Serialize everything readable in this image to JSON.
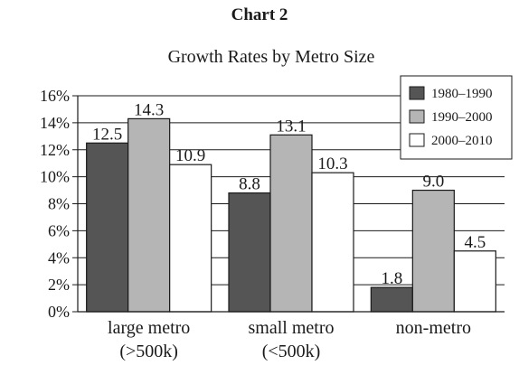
{
  "chart_data": {
    "type": "bar",
    "header": "Chart 2",
    "title": "Growth Rates by Metro Size",
    "xlabel": "",
    "ylabel": "",
    "ylim": [
      0,
      16
    ],
    "y_ticks": [
      "0%",
      "2%",
      "4%",
      "6%",
      "8%",
      "10%",
      "12%",
      "14%",
      "16%"
    ],
    "categories": [
      {
        "line1": "large metro",
        "line2": "(>500k)"
      },
      {
        "line1": "small metro",
        "line2": "(<500k)"
      },
      {
        "line1": "non-metro",
        "line2": ""
      }
    ],
    "series": [
      {
        "name": "1980–1990",
        "color": "#555555",
        "values": [
          12.5,
          8.8,
          1.8
        ],
        "labels": [
          "12.5",
          "8.8",
          "1.8"
        ]
      },
      {
        "name": "1990–2000",
        "color": "#b5b5b5",
        "values": [
          14.3,
          13.1,
          9.0
        ],
        "labels": [
          "14.3",
          "13.1",
          "9.0"
        ]
      },
      {
        "name": "2000–2010",
        "color": "#ffffff",
        "values": [
          10.9,
          10.3,
          4.5
        ],
        "labels": [
          "10.9",
          "10.3",
          "4.5"
        ]
      }
    ],
    "grid": true,
    "legend_position": "top-right"
  }
}
